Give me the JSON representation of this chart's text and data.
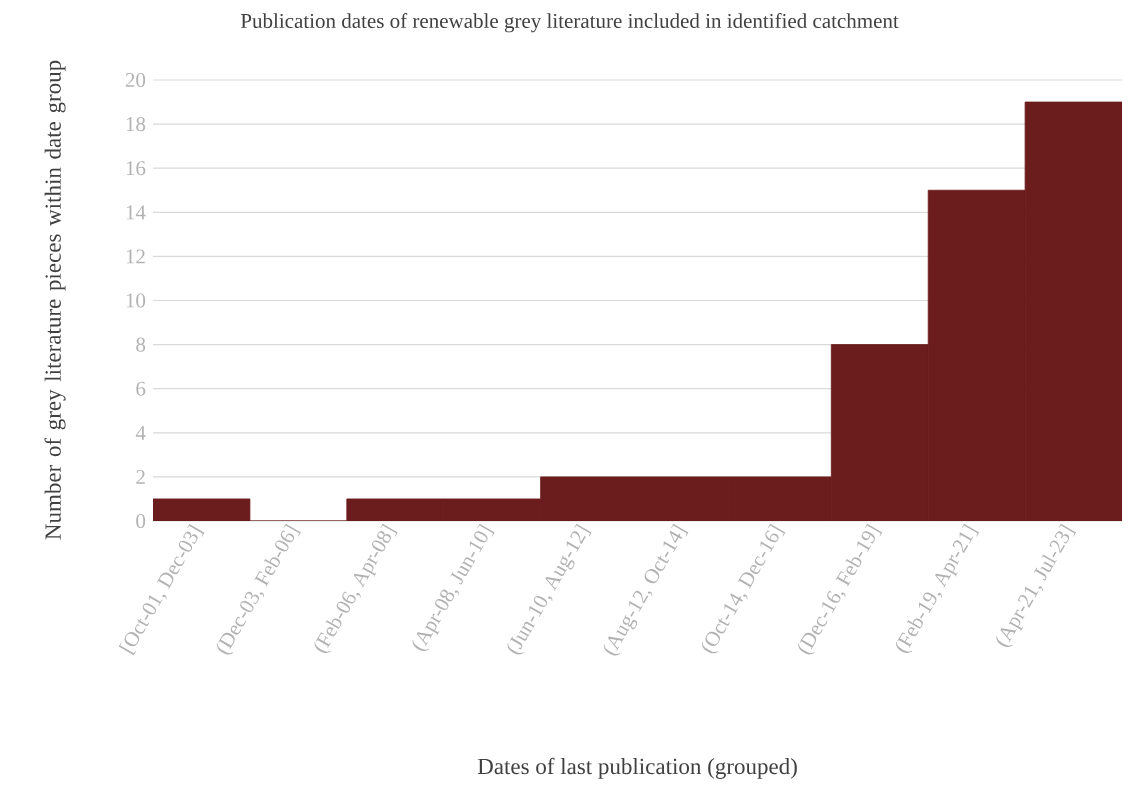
{
  "chart_data": {
    "type": "bar",
    "title": "Publication dates of renewable grey literature included in identified catchment",
    "xlabel": "Dates of last publication (grouped)",
    "ylabel": "Number of grey literature pieces within date group",
    "categories": [
      "[Oct-01, Dec-03]",
      "(Dec-03, Feb-06]",
      "(Feb-06, Apr-08]",
      "(Apr-08, Jun-10]",
      "(Jun-10, Aug-12]",
      "(Aug-12, Oct-14]",
      "(Oct-14, Dec-16]",
      "(Dec-16, Feb-19]",
      "(Feb-19, Apr-21]",
      "(Apr-21, Jul-23]"
    ],
    "values": [
      1,
      0,
      1,
      1,
      2,
      2,
      2,
      8,
      15,
      19
    ],
    "color": "#6b1c1c",
    "ylim": [
      0,
      20
    ],
    "yticks": [
      0,
      2,
      4,
      6,
      8,
      10,
      12,
      14,
      16,
      18,
      20
    ],
    "grid": "y"
  }
}
